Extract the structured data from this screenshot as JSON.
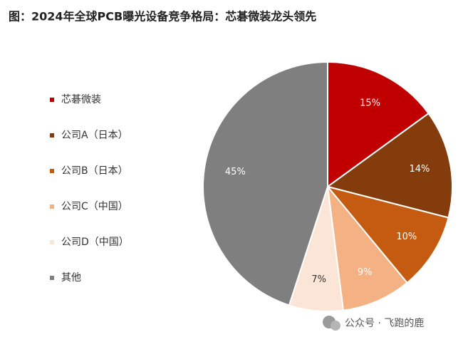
{
  "chart_data": {
    "type": "pie",
    "title": "图：2024年全球PCB曝光设备竞争格局：芯碁微装龙头领先",
    "categories": [
      "芯碁微装",
      "公司A（日本）",
      "公司B（日本）",
      "公司C（中国）",
      "公司D（中国）",
      "其他"
    ],
    "values": [
      15,
      14,
      10,
      9,
      7,
      45
    ],
    "value_labels": [
      "15%",
      "14%",
      "10%",
      "9%",
      "7%",
      "45%"
    ],
    "colors": [
      "#c00000",
      "#843c0c",
      "#c55a11",
      "#f4b183",
      "#fbe5d6",
      "#7f7f7f"
    ],
    "legend": "left",
    "annotation": "公众号 · 飞跑的鹿"
  }
}
